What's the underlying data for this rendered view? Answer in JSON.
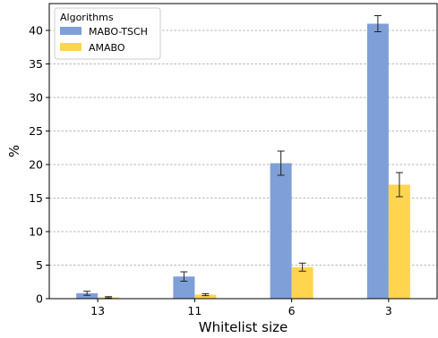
{
  "chart_data": {
    "type": "bar",
    "title": "",
    "xlabel": "Whitelist size",
    "ylabel": "%",
    "categories": [
      "13",
      "11",
      "6",
      "3"
    ],
    "ylim": [
      0,
      44
    ],
    "yticks": [
      0,
      5,
      10,
      15,
      20,
      25,
      30,
      35,
      40
    ],
    "grid": "horizontal dashed",
    "legend": {
      "title": "Algorithms",
      "placement": "top-left"
    },
    "series": [
      {
        "name": "MABO-TSCH",
        "color": "#7f9fd8",
        "values": [
          0.8,
          3.3,
          20.2,
          41.0
        ],
        "errors": [
          0.3,
          0.7,
          1.8,
          1.2
        ]
      },
      {
        "name": "AMABO",
        "color": "#ffd54f",
        "values": [
          0.2,
          0.6,
          4.7,
          17.0
        ],
        "errors": [
          0.1,
          0.15,
          0.6,
          1.8
        ]
      }
    ]
  }
}
